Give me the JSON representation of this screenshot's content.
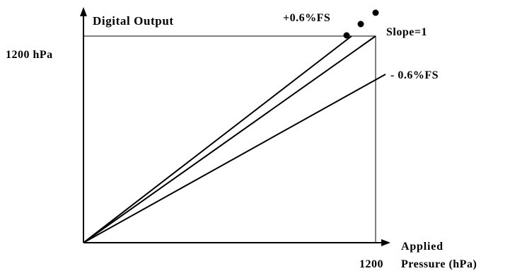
{
  "diagram": {
    "y_axis_title": "Digital Output",
    "y_max_label": "1200 hPa",
    "x_axis_title_line1": "Applied",
    "x_max_value": "1200",
    "x_axis_title_line2": "Pressure (hPa)",
    "upper_line_label": "+0.6%FS",
    "slope_label": "Slope=1",
    "lower_line_label": "- 0.6%FS"
  },
  "colors": {
    "lines": "#000000",
    "guides": "#808080",
    "background": "#ffffff"
  }
}
